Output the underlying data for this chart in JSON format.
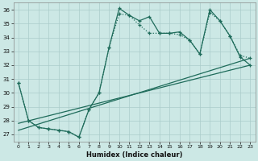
{
  "xlabel": "Humidex (Indice chaleur)",
  "bg_color": "#cce8e5",
  "grid_color": "#aaccca",
  "line_color": "#1e6b5a",
  "xlim": [
    -0.5,
    23.5
  ],
  "ylim": [
    26.5,
    36.5
  ],
  "xticks": [
    0,
    1,
    2,
    3,
    4,
    5,
    6,
    7,
    8,
    9,
    10,
    11,
    12,
    13,
    14,
    15,
    16,
    17,
    18,
    19,
    20,
    21,
    22,
    23
  ],
  "yticks": [
    27,
    28,
    29,
    30,
    31,
    32,
    33,
    34,
    35,
    36
  ],
  "series_solid": {
    "x": [
      0,
      1,
      2,
      3,
      4,
      5,
      6,
      7,
      8,
      9,
      10,
      11,
      12,
      13,
      14,
      15,
      16,
      17,
      18,
      19,
      20,
      21,
      22,
      23
    ],
    "y": [
      30.7,
      28.0,
      27.5,
      27.4,
      27.3,
      27.2,
      26.8,
      28.8,
      30.0,
      33.3,
      36.1,
      35.6,
      35.2,
      35.5,
      34.3,
      34.3,
      34.4,
      33.8,
      32.8,
      36.0,
      35.2,
      34.1,
      32.6,
      32.0
    ]
  },
  "series_dotted": {
    "x": [
      0,
      1,
      2,
      3,
      4,
      5,
      6,
      7,
      8,
      9,
      10,
      11,
      12,
      13,
      14,
      15,
      16,
      17,
      18,
      19,
      20,
      21,
      22,
      23
    ],
    "y": [
      30.7,
      28.0,
      27.5,
      27.4,
      27.3,
      27.2,
      26.8,
      28.8,
      30.0,
      33.3,
      35.7,
      35.6,
      34.9,
      34.3,
      34.3,
      34.3,
      34.2,
      33.8,
      32.8,
      35.8,
      35.2,
      34.1,
      32.7,
      32.5
    ]
  },
  "series_diag1": {
    "x": [
      0,
      23
    ],
    "y": [
      27.8,
      32.0
    ]
  },
  "series_diag2": {
    "x": [
      0,
      23
    ],
    "y": [
      27.3,
      32.5
    ]
  }
}
